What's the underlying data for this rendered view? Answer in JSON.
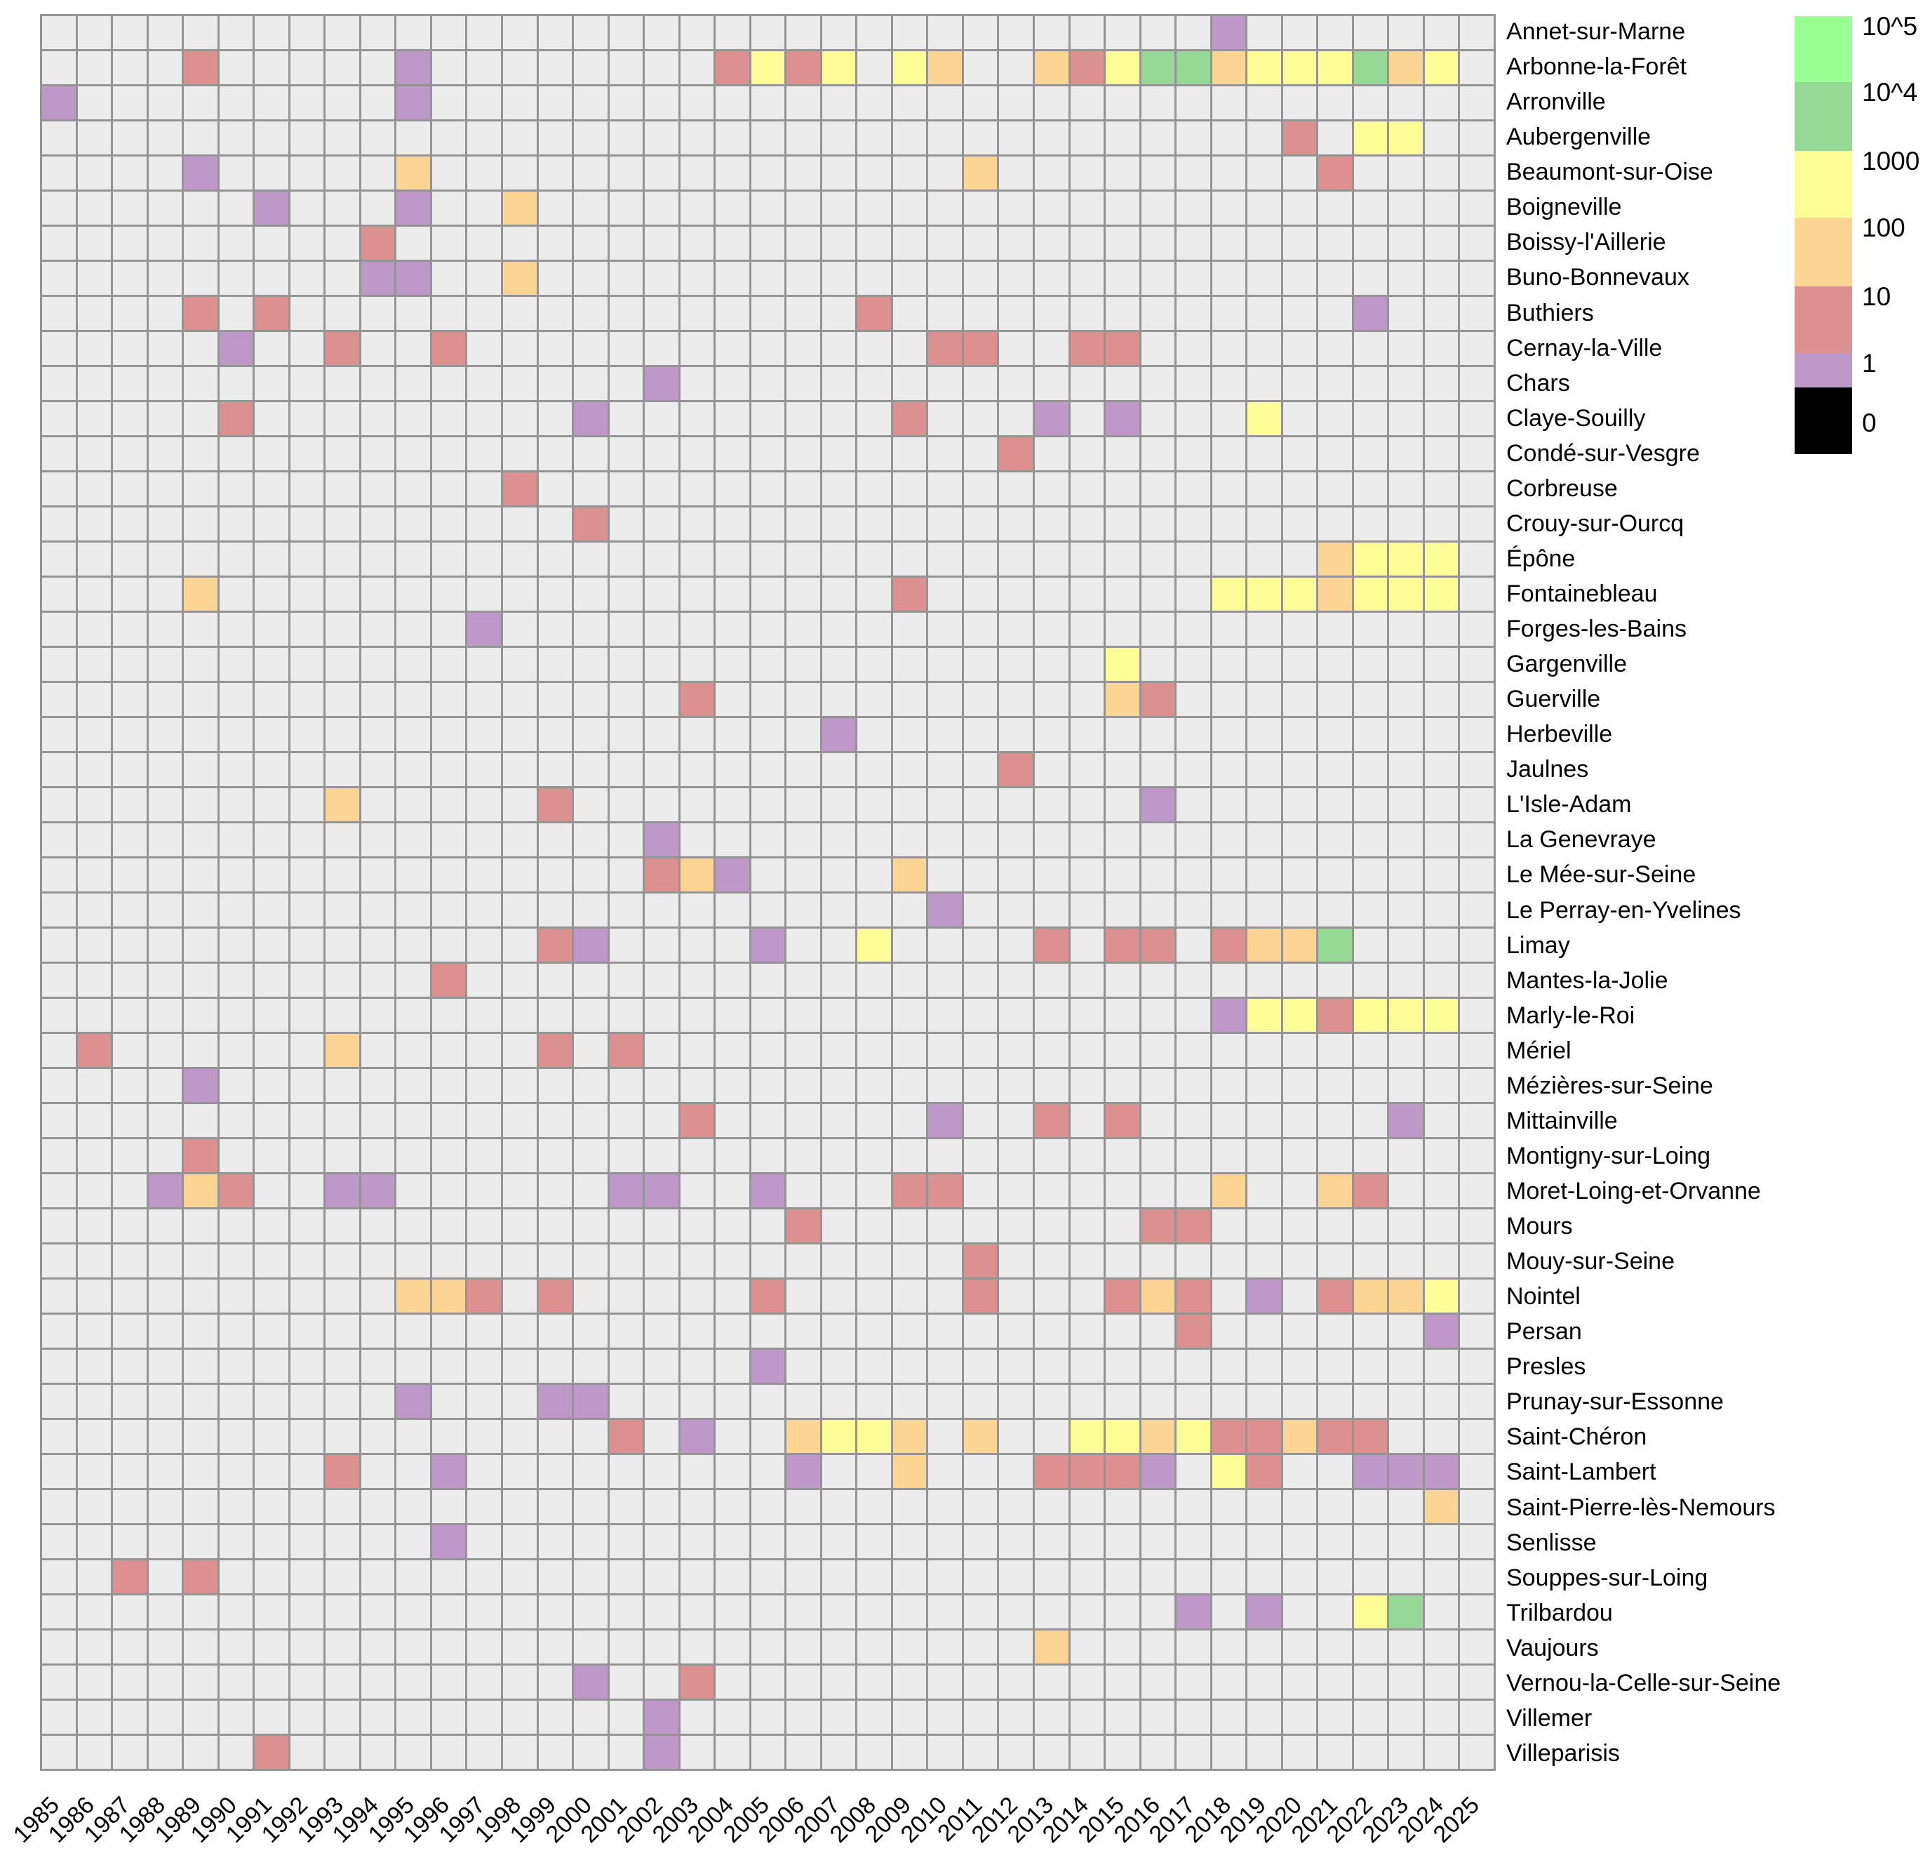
{
  "chart_data": {
    "type": "heatmap",
    "title": "",
    "xlabel": "",
    "ylabel": "",
    "grid": "on",
    "legend_position": "top-right",
    "panel_empty_color": "#ECECEC",
    "grid_line_color": "#949494",
    "x_labels": [
      1985,
      1986,
      1987,
      1988,
      1989,
      1990,
      1991,
      1992,
      1993,
      1994,
      1995,
      1996,
      1997,
      1998,
      1999,
      2000,
      2001,
      2002,
      2003,
      2004,
      2005,
      2006,
      2007,
      2008,
      2009,
      2010,
      2011,
      2012,
      2013,
      2014,
      2015,
      2016,
      2017,
      2018,
      2019,
      2020,
      2021,
      2022,
      2023,
      2024,
      2025
    ],
    "y_labels": [
      "Annet-sur-Marne",
      "Arbonne-la-Forêt",
      "Arronville",
      "Aubergenville",
      "Beaumont-sur-Oise",
      "Boigneville",
      "Boissy-l'Aillerie",
      "Buno-Bonnevaux",
      "Buthiers",
      "Cernay-la-Ville",
      "Chars",
      "Claye-Souilly",
      "Condé-sur-Vesgre",
      "Corbreuse",
      "Crouy-sur-Ourcq",
      "Épône",
      "Fontainebleau",
      "Forges-les-Bains",
      "Gargenville",
      "Guerville",
      "Herbeville",
      "Jaulnes",
      "L'Isle-Adam",
      "La Genevraye",
      "Le Mée-sur-Seine",
      "Le Perray-en-Yvelines",
      "Limay",
      "Mantes-la-Jolie",
      "Marly-le-Roi",
      "Mériel",
      "Mézières-sur-Seine",
      "Mittainville",
      "Montigny-sur-Loing",
      "Moret-Loing-et-Orvanne",
      "Mours",
      "Mouy-sur-Seine",
      "Nointel",
      "Persan",
      "Presles",
      "Prunay-sur-Essonne",
      "Saint-Chéron",
      "Saint-Lambert",
      "Saint-Pierre-lès-Nemours",
      "Senlisse",
      "Souppes-sur-Loing",
      "Trilbardou",
      "Vaujours",
      "Vernou-la-Celle-sur-Seine",
      "Villemer",
      "Villeparisis"
    ],
    "level_colors": {
      "10^5": "#99FF94",
      "10^4": "#96D896",
      "1000": "#FDFD97",
      "100": "#FCD494",
      "10": "#DD9090",
      "1": "#BE98C8",
      "0": "#000000"
    },
    "legend_entries": [
      "10^5",
      "10^4",
      "1000",
      "100",
      "10",
      "1",
      "0"
    ],
    "cells": [
      [
        "Annet-sur-Marne",
        2018,
        "1"
      ],
      [
        "Arbonne-la-Forêt",
        1989,
        "10"
      ],
      [
        "Arbonne-la-Forêt",
        1995,
        "1"
      ],
      [
        "Arbonne-la-Forêt",
        2004,
        "10"
      ],
      [
        "Arbonne-la-Forêt",
        2005,
        "1000"
      ],
      [
        "Arbonne-la-Forêt",
        2006,
        "10"
      ],
      [
        "Arbonne-la-Forêt",
        2007,
        "1000"
      ],
      [
        "Arbonne-la-Forêt",
        2009,
        "1000"
      ],
      [
        "Arbonne-la-Forêt",
        2010,
        "100"
      ],
      [
        "Arbonne-la-Forêt",
        2013,
        "100"
      ],
      [
        "Arbonne-la-Forêt",
        2014,
        "10"
      ],
      [
        "Arbonne-la-Forêt",
        2015,
        "1000"
      ],
      [
        "Arbonne-la-Forêt",
        2016,
        "10^4"
      ],
      [
        "Arbonne-la-Forêt",
        2017,
        "10^4"
      ],
      [
        "Arbonne-la-Forêt",
        2018,
        "100"
      ],
      [
        "Arbonne-la-Forêt",
        2019,
        "1000"
      ],
      [
        "Arbonne-la-Forêt",
        2020,
        "1000"
      ],
      [
        "Arbonne-la-Forêt",
        2021,
        "1000"
      ],
      [
        "Arbonne-la-Forêt",
        2022,
        "10^4"
      ],
      [
        "Arbonne-la-Forêt",
        2023,
        "100"
      ],
      [
        "Arbonne-la-Forêt",
        2024,
        "1000"
      ],
      [
        "Arronville",
        1985,
        "1"
      ],
      [
        "Arronville",
        1995,
        "1"
      ],
      [
        "Aubergenville",
        2020,
        "10"
      ],
      [
        "Aubergenville",
        2022,
        "1000"
      ],
      [
        "Aubergenville",
        2023,
        "1000"
      ],
      [
        "Beaumont-sur-Oise",
        1989,
        "1"
      ],
      [
        "Beaumont-sur-Oise",
        1995,
        "100"
      ],
      [
        "Beaumont-sur-Oise",
        2011,
        "100"
      ],
      [
        "Beaumont-sur-Oise",
        2021,
        "10"
      ],
      [
        "Boigneville",
        1991,
        "1"
      ],
      [
        "Boigneville",
        1995,
        "1"
      ],
      [
        "Boigneville",
        1998,
        "100"
      ],
      [
        "Boissy-l'Aillerie",
        1994,
        "10"
      ],
      [
        "Buno-Bonnevaux",
        1994,
        "1"
      ],
      [
        "Buno-Bonnevaux",
        1995,
        "1"
      ],
      [
        "Buno-Bonnevaux",
        1998,
        "100"
      ],
      [
        "Buthiers",
        1989,
        "10"
      ],
      [
        "Buthiers",
        1991,
        "10"
      ],
      [
        "Buthiers",
        2008,
        "10"
      ],
      [
        "Buthiers",
        2022,
        "1"
      ],
      [
        "Cernay-la-Ville",
        1990,
        "1"
      ],
      [
        "Cernay-la-Ville",
        1993,
        "10"
      ],
      [
        "Cernay-la-Ville",
        1996,
        "10"
      ],
      [
        "Cernay-la-Ville",
        2010,
        "10"
      ],
      [
        "Cernay-la-Ville",
        2011,
        "10"
      ],
      [
        "Cernay-la-Ville",
        2014,
        "10"
      ],
      [
        "Cernay-la-Ville",
        2015,
        "10"
      ],
      [
        "Chars",
        2002,
        "1"
      ],
      [
        "Claye-Souilly",
        1990,
        "10"
      ],
      [
        "Claye-Souilly",
        2000,
        "1"
      ],
      [
        "Claye-Souilly",
        2009,
        "10"
      ],
      [
        "Claye-Souilly",
        2013,
        "1"
      ],
      [
        "Claye-Souilly",
        2015,
        "1"
      ],
      [
        "Claye-Souilly",
        2019,
        "1000"
      ],
      [
        "Condé-sur-Vesgre",
        2012,
        "10"
      ],
      [
        "Corbreuse",
        1998,
        "10"
      ],
      [
        "Crouy-sur-Ourcq",
        2000,
        "10"
      ],
      [
        "Épône",
        2021,
        "100"
      ],
      [
        "Épône",
        2022,
        "1000"
      ],
      [
        "Épône",
        2023,
        "1000"
      ],
      [
        "Épône",
        2024,
        "1000"
      ],
      [
        "Fontainebleau",
        1989,
        "100"
      ],
      [
        "Fontainebleau",
        2009,
        "10"
      ],
      [
        "Fontainebleau",
        2018,
        "1000"
      ],
      [
        "Fontainebleau",
        2019,
        "1000"
      ],
      [
        "Fontainebleau",
        2020,
        "1000"
      ],
      [
        "Fontainebleau",
        2021,
        "100"
      ],
      [
        "Fontainebleau",
        2022,
        "1000"
      ],
      [
        "Fontainebleau",
        2023,
        "1000"
      ],
      [
        "Fontainebleau",
        2024,
        "1000"
      ],
      [
        "Forges-les-Bains",
        1997,
        "1"
      ],
      [
        "Gargenville",
        2015,
        "1000"
      ],
      [
        "Guerville",
        2003,
        "10"
      ],
      [
        "Guerville",
        2015,
        "100"
      ],
      [
        "Guerville",
        2016,
        "10"
      ],
      [
        "Herbeville",
        2007,
        "1"
      ],
      [
        "Jaulnes",
        2012,
        "10"
      ],
      [
        "L'Isle-Adam",
        1993,
        "100"
      ],
      [
        "L'Isle-Adam",
        1999,
        "10"
      ],
      [
        "L'Isle-Adam",
        2016,
        "1"
      ],
      [
        "La Genevraye",
        2002,
        "1"
      ],
      [
        "Le Mée-sur-Seine",
        2002,
        "10"
      ],
      [
        "Le Mée-sur-Seine",
        2003,
        "100"
      ],
      [
        "Le Mée-sur-Seine",
        2004,
        "1"
      ],
      [
        "Le Mée-sur-Seine",
        2009,
        "100"
      ],
      [
        "Le Perray-en-Yvelines",
        2010,
        "1"
      ],
      [
        "Limay",
        1999,
        "10"
      ],
      [
        "Limay",
        2000,
        "1"
      ],
      [
        "Limay",
        2005,
        "1"
      ],
      [
        "Limay",
        2008,
        "1000"
      ],
      [
        "Limay",
        2013,
        "10"
      ],
      [
        "Limay",
        2015,
        "10"
      ],
      [
        "Limay",
        2016,
        "10"
      ],
      [
        "Limay",
        2018,
        "10"
      ],
      [
        "Limay",
        2019,
        "100"
      ],
      [
        "Limay",
        2020,
        "100"
      ],
      [
        "Limay",
        2021,
        "10^4"
      ],
      [
        "Mantes-la-Jolie",
        1996,
        "10"
      ],
      [
        "Marly-le-Roi",
        2018,
        "1"
      ],
      [
        "Marly-le-Roi",
        2019,
        "1000"
      ],
      [
        "Marly-le-Roi",
        2020,
        "1000"
      ],
      [
        "Marly-le-Roi",
        2021,
        "10"
      ],
      [
        "Marly-le-Roi",
        2022,
        "1000"
      ],
      [
        "Marly-le-Roi",
        2023,
        "1000"
      ],
      [
        "Marly-le-Roi",
        2024,
        "1000"
      ],
      [
        "Mériel",
        1986,
        "10"
      ],
      [
        "Mériel",
        1993,
        "100"
      ],
      [
        "Mériel",
        1999,
        "10"
      ],
      [
        "Mériel",
        2001,
        "10"
      ],
      [
        "Mézières-sur-Seine",
        1989,
        "1"
      ],
      [
        "Mittainville",
        2003,
        "10"
      ],
      [
        "Mittainville",
        2010,
        "1"
      ],
      [
        "Mittainville",
        2013,
        "10"
      ],
      [
        "Mittainville",
        2015,
        "10"
      ],
      [
        "Mittainville",
        2023,
        "1"
      ],
      [
        "Montigny-sur-Loing",
        1989,
        "10"
      ],
      [
        "Moret-Loing-et-Orvanne",
        1988,
        "1"
      ],
      [
        "Moret-Loing-et-Orvanne",
        1989,
        "100"
      ],
      [
        "Moret-Loing-et-Orvanne",
        1990,
        "10"
      ],
      [
        "Moret-Loing-et-Orvanne",
        1993,
        "1"
      ],
      [
        "Moret-Loing-et-Orvanne",
        1994,
        "1"
      ],
      [
        "Moret-Loing-et-Orvanne",
        2001,
        "1"
      ],
      [
        "Moret-Loing-et-Orvanne",
        2002,
        "1"
      ],
      [
        "Moret-Loing-et-Orvanne",
        2005,
        "1"
      ],
      [
        "Moret-Loing-et-Orvanne",
        2009,
        "10"
      ],
      [
        "Moret-Loing-et-Orvanne",
        2010,
        "10"
      ],
      [
        "Moret-Loing-et-Orvanne",
        2018,
        "100"
      ],
      [
        "Moret-Loing-et-Orvanne",
        2021,
        "100"
      ],
      [
        "Moret-Loing-et-Orvanne",
        2022,
        "10"
      ],
      [
        "Mours",
        2006,
        "10"
      ],
      [
        "Mours",
        2016,
        "10"
      ],
      [
        "Mours",
        2017,
        "10"
      ],
      [
        "Mouy-sur-Seine",
        2011,
        "10"
      ],
      [
        "Nointel",
        1995,
        "100"
      ],
      [
        "Nointel",
        1996,
        "100"
      ],
      [
        "Nointel",
        1997,
        "10"
      ],
      [
        "Nointel",
        1999,
        "10"
      ],
      [
        "Nointel",
        2005,
        "10"
      ],
      [
        "Nointel",
        2011,
        "10"
      ],
      [
        "Nointel",
        2015,
        "10"
      ],
      [
        "Nointel",
        2016,
        "100"
      ],
      [
        "Nointel",
        2017,
        "10"
      ],
      [
        "Nointel",
        2019,
        "1"
      ],
      [
        "Nointel",
        2021,
        "10"
      ],
      [
        "Nointel",
        2022,
        "100"
      ],
      [
        "Nointel",
        2023,
        "100"
      ],
      [
        "Nointel",
        2024,
        "1000"
      ],
      [
        "Persan",
        2017,
        "10"
      ],
      [
        "Persan",
        2024,
        "1"
      ],
      [
        "Presles",
        2005,
        "1"
      ],
      [
        "Prunay-sur-Essonne",
        1995,
        "1"
      ],
      [
        "Prunay-sur-Essonne",
        1999,
        "1"
      ],
      [
        "Prunay-sur-Essonne",
        2000,
        "1"
      ],
      [
        "Saint-Chéron",
        2001,
        "10"
      ],
      [
        "Saint-Chéron",
        2003,
        "1"
      ],
      [
        "Saint-Chéron",
        2006,
        "100"
      ],
      [
        "Saint-Chéron",
        2007,
        "1000"
      ],
      [
        "Saint-Chéron",
        2008,
        "1000"
      ],
      [
        "Saint-Chéron",
        2009,
        "100"
      ],
      [
        "Saint-Chéron",
        2011,
        "100"
      ],
      [
        "Saint-Chéron",
        2014,
        "1000"
      ],
      [
        "Saint-Chéron",
        2015,
        "1000"
      ],
      [
        "Saint-Chéron",
        2016,
        "100"
      ],
      [
        "Saint-Chéron",
        2017,
        "1000"
      ],
      [
        "Saint-Chéron",
        2018,
        "10"
      ],
      [
        "Saint-Chéron",
        2019,
        "10"
      ],
      [
        "Saint-Chéron",
        2020,
        "100"
      ],
      [
        "Saint-Chéron",
        2021,
        "10"
      ],
      [
        "Saint-Chéron",
        2022,
        "10"
      ],
      [
        "Saint-Lambert",
        1993,
        "10"
      ],
      [
        "Saint-Lambert",
        1996,
        "1"
      ],
      [
        "Saint-Lambert",
        2006,
        "1"
      ],
      [
        "Saint-Lambert",
        2009,
        "100"
      ],
      [
        "Saint-Lambert",
        2013,
        "10"
      ],
      [
        "Saint-Lambert",
        2014,
        "10"
      ],
      [
        "Saint-Lambert",
        2015,
        "10"
      ],
      [
        "Saint-Lambert",
        2016,
        "1"
      ],
      [
        "Saint-Lambert",
        2018,
        "1000"
      ],
      [
        "Saint-Lambert",
        2019,
        "10"
      ],
      [
        "Saint-Lambert",
        2022,
        "1"
      ],
      [
        "Saint-Lambert",
        2023,
        "1"
      ],
      [
        "Saint-Lambert",
        2024,
        "1"
      ],
      [
        "Saint-Pierre-lès-Nemours",
        2024,
        "100"
      ],
      [
        "Senlisse",
        1996,
        "1"
      ],
      [
        "Souppes-sur-Loing",
        1987,
        "10"
      ],
      [
        "Souppes-sur-Loing",
        1989,
        "10"
      ],
      [
        "Trilbardou",
        2017,
        "1"
      ],
      [
        "Trilbardou",
        2019,
        "1"
      ],
      [
        "Trilbardou",
        2022,
        "1000"
      ],
      [
        "Trilbardou",
        2023,
        "10^4"
      ],
      [
        "Vaujours",
        2013,
        "100"
      ],
      [
        "Vernou-la-Celle-sur-Seine",
        2000,
        "1"
      ],
      [
        "Vernou-la-Celle-sur-Seine",
        2003,
        "10"
      ],
      [
        "Villemer",
        2002,
        "1"
      ],
      [
        "Villeparisis",
        1991,
        "10"
      ],
      [
        "Villeparisis",
        2002,
        "1"
      ]
    ]
  }
}
